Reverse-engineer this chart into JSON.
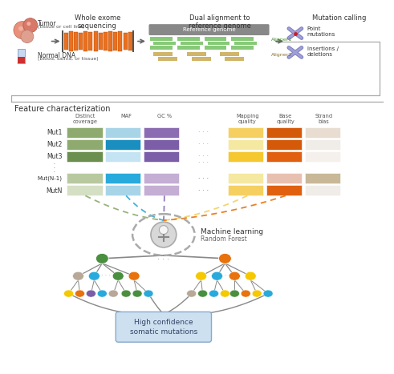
{
  "bg_color": "#ffffff",
  "top": {
    "tumor_label1": "Tumor",
    "tumor_label2": "(tissue or cell line)",
    "normal_label1": "Normal DNA",
    "normal_label2": "(blood, saliva, or tissue)",
    "wes_title": "Whole exome\nsequencing",
    "align_title": "Dual alignment to\nreference genome",
    "ref_genome_label": "Reference genome",
    "aligner1": "Aligner1",
    "aligner2": "Aligner2",
    "mutation_calling": "Mutation calling",
    "point_mutations": "Point\nmutations",
    "insertions_deletions": "Insertions /\ndeletions"
  },
  "feature": {
    "title": "Feature characterization",
    "col_headers": [
      "Distinct\ncoverage",
      "MAF",
      "GC %",
      "Mapping\nquality",
      "Base\nquality",
      "Strand\nbias"
    ],
    "row_labels": [
      "Mut1",
      "Mut2",
      "Mut3",
      "Mut(N-1)",
      "MutN"
    ],
    "g1_colors": [
      [
        "#8faa6e",
        "#a8d4e8",
        "#8b6bb1"
      ],
      [
        "#8faa6e",
        "#1a8fbf",
        "#7b5ea7"
      ],
      [
        "#6b8f4e",
        "#c5e4f3",
        "#7b5ea7"
      ],
      [
        "#b8c9a0",
        "#29aadc",
        "#c4aed4"
      ],
      [
        "#d4dfc4",
        "#a8d4e8",
        "#c4aed4"
      ]
    ],
    "g2_colors": [
      [
        "#f5d060",
        "#d45a0a",
        "#e8ddd0"
      ],
      [
        "#f5e8a0",
        "#d45a0a",
        "#f0ece8"
      ],
      [
        "#f5c830",
        "#e06010",
        "#f5f0ec"
      ],
      [
        "#f5e8a0",
        "#e8c0b0",
        "#c8b898"
      ],
      [
        "#f5d060",
        "#e06010",
        "#f0ece8"
      ]
    ]
  },
  "ml": {
    "title": "Machine learning",
    "subtitle": "Random Forest",
    "output": "High confidence\nsomatic mutations"
  },
  "dashed_colors": [
    "#8faa6e",
    "#29aadc",
    "#8b6bb1",
    "#f5d060",
    "#e8720c"
  ],
  "tree_l1_colors": [
    "#4a8f3f",
    "#e8720c",
    "#f5c800",
    "#7b5ea7"
  ],
  "tree_l2_left": [
    "#b8a898",
    "#29aadc",
    "#4a8f3f",
    "#e8720c"
  ],
  "tree_l2_right": [
    "#f5c800",
    "#29aadc",
    "#e8720c",
    "#f5c800"
  ],
  "tree_l3_left": [
    "#f5c800",
    "#e8720c",
    "#7b5ea7",
    "#29aadc",
    "#b8a898",
    "#4a8f3f",
    "#4a8f3f",
    "#29aadc"
  ],
  "tree_l3_right": [
    "#b8a898",
    "#4a8f3f",
    "#29aadc",
    "#f5c800",
    "#4a8f3f",
    "#e8720c",
    "#f5c800",
    "#29aadc"
  ]
}
